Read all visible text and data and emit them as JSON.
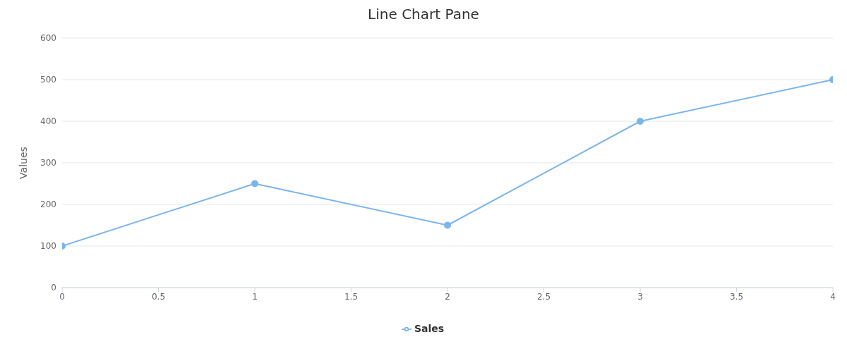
{
  "chart_data": {
    "type": "line",
    "title": "Line Chart Pane",
    "ylabel": "Values",
    "x": [
      0,
      1,
      2,
      3,
      4
    ],
    "series": [
      {
        "name": "Sales",
        "color": "#7cb5ec",
        "values": [
          100,
          250,
          150,
          400,
          500
        ]
      }
    ],
    "xlim": [
      0,
      4
    ],
    "xticks": [
      0,
      0.5,
      1,
      1.5,
      2,
      2.5,
      3,
      3.5,
      4
    ],
    "ylim": [
      0,
      600
    ],
    "yticks": [
      0,
      100,
      200,
      300,
      400,
      500,
      600
    ],
    "grid": "y",
    "legend": "bottom",
    "marker": "circle",
    "line_style": "solid"
  }
}
